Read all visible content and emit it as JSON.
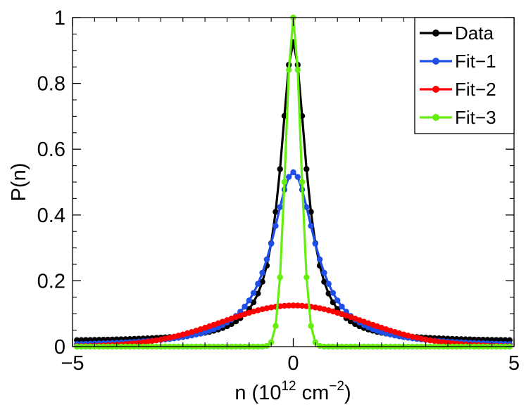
{
  "chart_data": {
    "type": "line",
    "title": "",
    "xlabel": {
      "base": "n  (10",
      "exp1": "12",
      "mid": " cm",
      "exp2": "−2",
      "end": ")"
    },
    "ylabel": "P(n)",
    "xlim": [
      -5,
      5
    ],
    "ylim": [
      0,
      1.0
    ],
    "x_ticks": [
      -5,
      0,
      5
    ],
    "x_tick_labels": [
      "−5",
      "0",
      "5"
    ],
    "y_ticks": [
      0,
      0.2,
      0.4,
      0.6,
      0.8,
      1
    ],
    "y_tick_labels": [
      "0",
      "0.2",
      "0.4",
      "0.6",
      "0.8",
      "1"
    ],
    "grid": false,
    "legend_position": "top-right",
    "series": [
      {
        "name": "Data",
        "color": "#000000",
        "model": "lorentzian",
        "params": {
          "amplitude": 0.91,
          "gamma": 0.35,
          "offset": 0.015
        },
        "x_start": -4.9,
        "x_step": 0.1,
        "count": 99
      },
      {
        "name": "Fit−1",
        "color": "#1f4fe6",
        "model": "lorentzian",
        "params": {
          "amplitude": 0.53,
          "gamma": 0.6,
          "offset": 0.0
        },
        "x_start": -4.9,
        "x_step": 0.1,
        "count": 99
      },
      {
        "name": "Fit−2",
        "color": "#ff0000",
        "model": "gaussian",
        "params": {
          "amplitude": 0.125,
          "sigma": 1.6,
          "offset": 0.0
        },
        "x_start": -4.9,
        "x_step": 0.1,
        "count": 99
      },
      {
        "name": "Fit−3",
        "color": "#66ee11",
        "model": "gaussian",
        "params": {
          "amplitude": 1.0,
          "sigma": 0.17,
          "offset": 0.0
        },
        "x_start": -4.9,
        "x_step": 0.1,
        "count": 99
      }
    ]
  }
}
